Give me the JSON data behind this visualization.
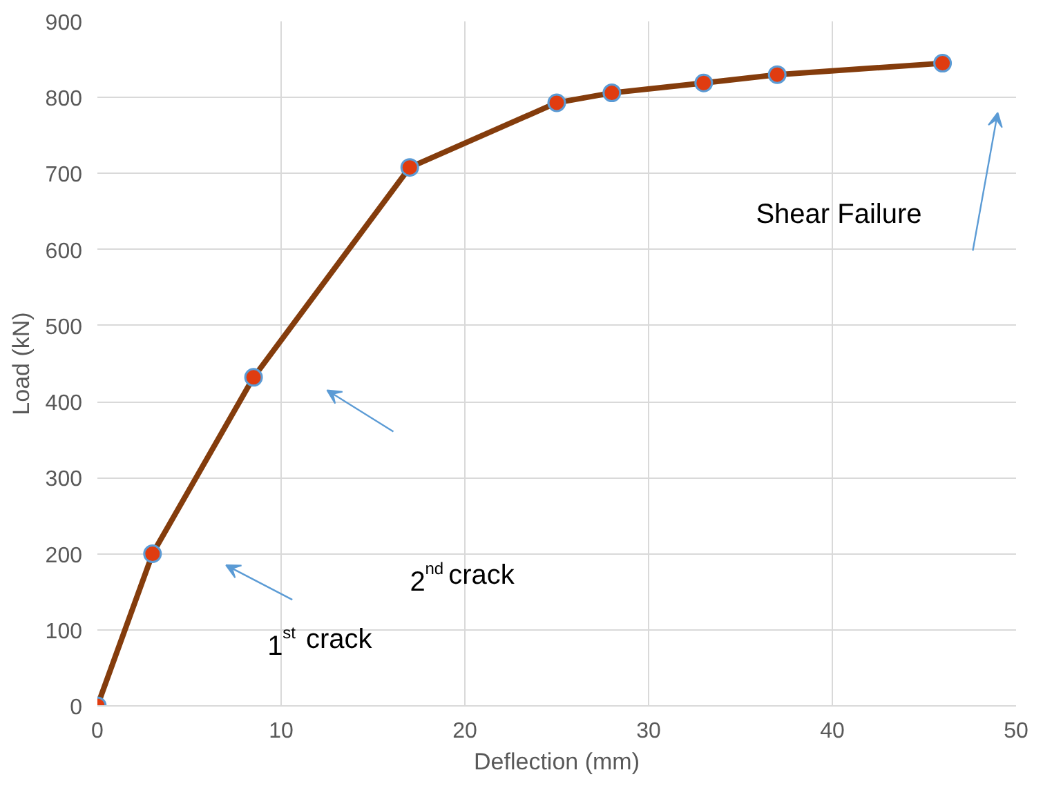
{
  "chart_data": {
    "type": "line",
    "xlabel": "Deflection (mm)",
    "ylabel": "Load (kN)",
    "x": [
      0,
      3,
      8.5,
      17,
      25,
      28,
      33,
      37,
      46
    ],
    "series": [
      {
        "color": "#843c0c",
        "values": [
          0,
          200,
          432,
          708,
          793,
          806,
          819,
          830,
          845
        ]
      }
    ],
    "marker": "circle",
    "line_style": "solid",
    "grid": true,
    "xlim": [
      0,
      50
    ],
    "xticks": [
      0,
      10,
      20,
      30,
      40,
      50
    ],
    "ylim": [
      0,
      900
    ],
    "yticks": [
      0,
      100,
      200,
      300,
      400,
      500,
      600,
      700,
      800,
      900
    ],
    "annotations": [
      "1$^{st}$ crack",
      "2$^{nd}$ crack",
      "Shear Failure"
    ]
  }
}
